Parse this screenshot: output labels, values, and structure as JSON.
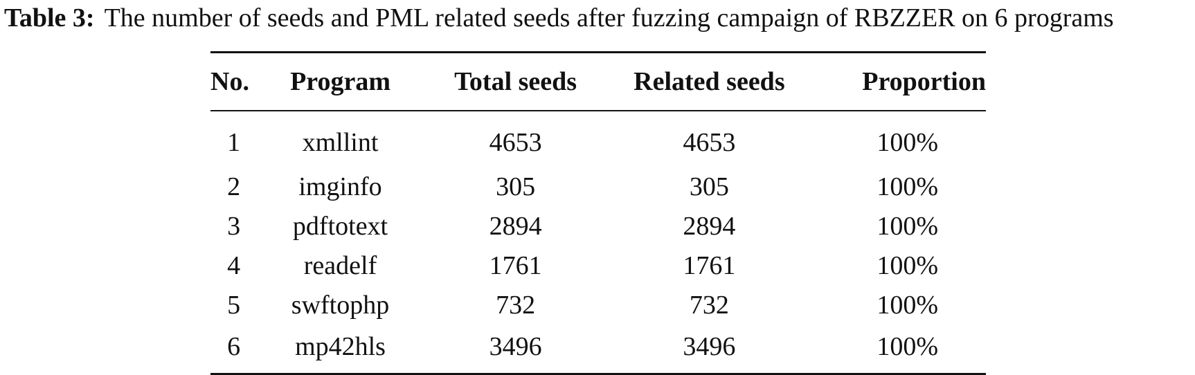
{
  "caption": {
    "label": "Table 3:",
    "text": "The number of seeds and PML related seeds after fuzzing campaign of RBZZER on 6 programs"
  },
  "table": {
    "headers": {
      "no": "No.",
      "program": "Program",
      "total": "Total seeds",
      "related": "Related seeds",
      "proportion": "Proportion"
    },
    "rows": [
      {
        "no": "1",
        "program": "xmllint",
        "total": "4653",
        "related": "4653",
        "proportion": "100%"
      },
      {
        "no": "2",
        "program": "imginfo",
        "total": "305",
        "related": "305",
        "proportion": "100%"
      },
      {
        "no": "3",
        "program": "pdftotext",
        "total": "2894",
        "related": "2894",
        "proportion": "100%"
      },
      {
        "no": "4",
        "program": "readelf",
        "total": "1761",
        "related": "1761",
        "proportion": "100%"
      },
      {
        "no": "5",
        "program": "swftophp",
        "total": "732",
        "related": "732",
        "proportion": "100%"
      },
      {
        "no": "6",
        "program": "mp42hls",
        "total": "3496",
        "related": "3496",
        "proportion": "100%"
      }
    ]
  }
}
